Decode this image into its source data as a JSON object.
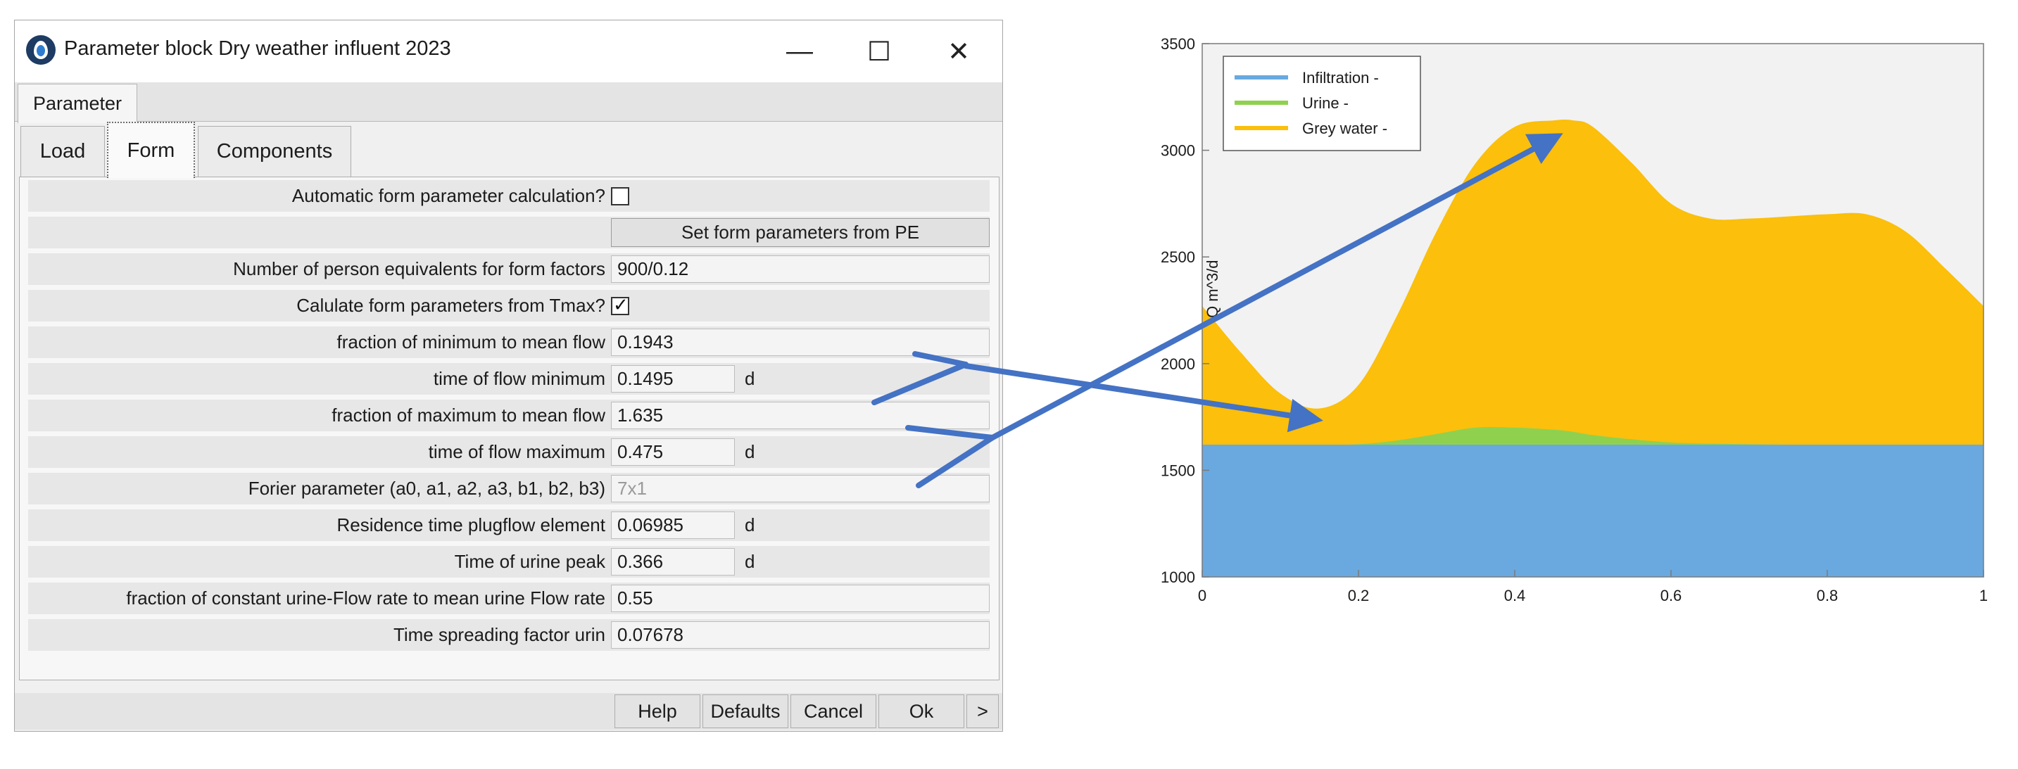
{
  "window": {
    "title": "Parameter block Dry weather influent 2023",
    "minimize_glyph": "—",
    "maximize_glyph": "☐",
    "close_glyph": "✕",
    "icon": "app-drop-icon"
  },
  "param_tab": "Parameter",
  "tabs": {
    "load": "Load",
    "form": "Form",
    "components": "Components"
  },
  "form": {
    "auto_calc_label": "Automatic form parameter calculation?",
    "auto_calc_checked": false,
    "set_form_button": "Set form parameters from PE",
    "pe_label": "Number of person equivalents for form factors",
    "pe_value": "900/0.12",
    "tmax_label": "Calulate form parameters from Tmax?",
    "tmax_checked": true,
    "min_frac_label": "fraction of minimum to mean flow",
    "min_frac_value": "0.1943",
    "t_min_label": "time of flow minimum",
    "t_min_value": "0.1495",
    "t_min_unit": "d",
    "max_frac_label": "fraction of maximum to mean flow",
    "max_frac_value": "1.635",
    "t_max_label": "time of flow maximum",
    "t_max_value": "0.475",
    "t_max_unit": "d",
    "fourier_label": "Forier parameter (a0, a1, a2, a3, b1, b2, b3)",
    "fourier_value": "7x1",
    "residence_label": "Residence time plugflow element",
    "residence_value": "0.06985",
    "residence_unit": "d",
    "urine_peak_label": "Time of urine peak",
    "urine_peak_value": "0.366",
    "urine_peak_unit": "d",
    "urine_frac_label": "fraction of constant urine-Flow rate to mean urine Flow rate",
    "urine_frac_value": "0.55",
    "spread_label": "Time spreading factor urin",
    "spread_value": "0.07678"
  },
  "footer": {
    "help": "Help",
    "defaults": "Defaults",
    "cancel": "Cancel",
    "ok": "Ok",
    "more": ">"
  },
  "colors": {
    "infiltration": "#69a9e0",
    "urine": "#8fd14f",
    "grey_water": "#fbbf0c",
    "arrow": "#4472c4",
    "plot_bg": "#f2f2f2"
  },
  "chart_data": {
    "type": "area",
    "stacked": true,
    "xlabel": "",
    "ylabel": "Q m^3/d",
    "xlim": [
      0,
      1
    ],
    "ylim": [
      1000,
      3500
    ],
    "xticks": [
      "0",
      "0.2",
      "0.4",
      "0.6",
      "0.8",
      "1"
    ],
    "yticks": [
      "1000",
      "1500",
      "2000",
      "2500",
      "3000",
      "3500"
    ],
    "legend_position": "top-left",
    "grid": false,
    "x": [
      0,
      0.05,
      0.1,
      0.15,
      0.2,
      0.25,
      0.3,
      0.35,
      0.4,
      0.45,
      0.475,
      0.5,
      0.55,
      0.6,
      0.65,
      0.7,
      0.75,
      0.8,
      0.85,
      0.9,
      0.95,
      1
    ],
    "series": [
      {
        "name": "Infiltration -",
        "values": [
          1620,
          1620,
          1620,
          1620,
          1620,
          1620,
          1620,
          1620,
          1620,
          1620,
          1620,
          1620,
          1620,
          1620,
          1620,
          1620,
          1620,
          1620,
          1620,
          1620,
          1620,
          1620
        ]
      },
      {
        "name": "Urine -",
        "values": [
          1620,
          1620,
          1620,
          1620,
          1622,
          1640,
          1670,
          1700,
          1700,
          1690,
          1680,
          1665,
          1645,
          1630,
          1625,
          1622,
          1620,
          1620,
          1620,
          1620,
          1620,
          1620
        ]
      },
      {
        "name": "Grey water -",
        "values": [
          2270,
          2050,
          1860,
          1790,
          1900,
          2230,
          2620,
          2940,
          3110,
          3140,
          3140,
          3110,
          2940,
          2750,
          2680,
          2680,
          2690,
          2700,
          2700,
          2620,
          2450,
          2270
        ]
      }
    ]
  }
}
